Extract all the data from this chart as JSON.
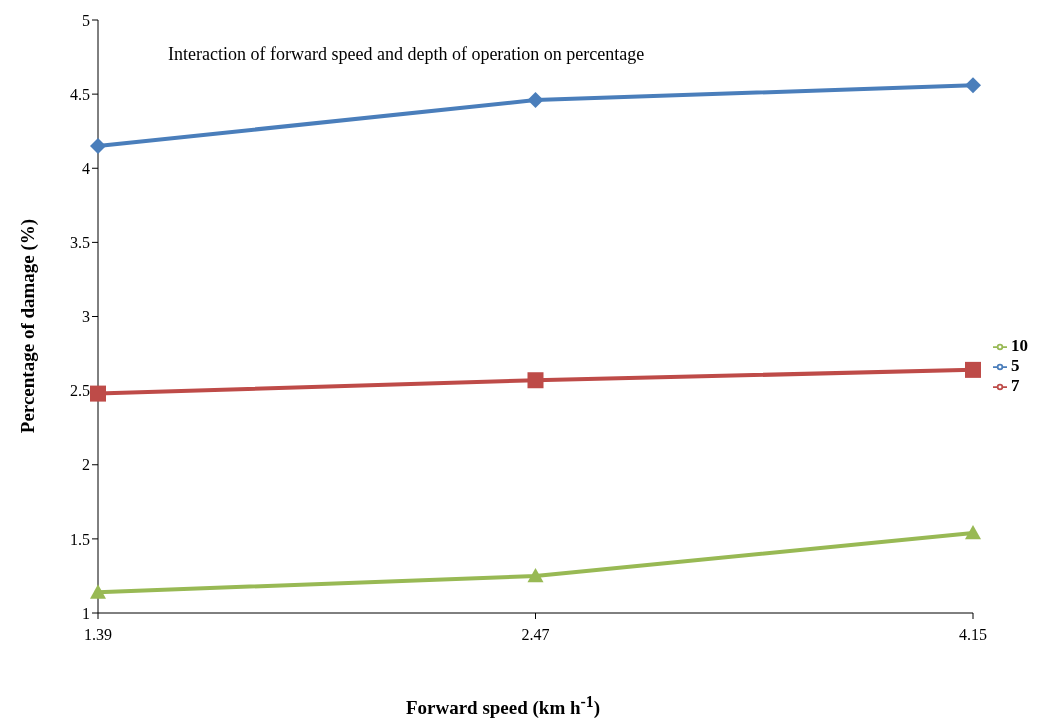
{
  "chart_data": {
    "type": "line",
    "title": "Interaction of forward speed and depth of operation on percentage",
    "xlabel": "Forward speed (km h$^{-1}$)",
    "ylabel": "Percentage of damage (%)",
    "categories": [
      "1.39",
      "2.47",
      "4.15"
    ],
    "series": [
      {
        "name": "5",
        "color": "#4a7ebb",
        "marker": "diamond",
        "values": [
          4.15,
          4.46,
          4.56
        ]
      },
      {
        "name": "7",
        "color": "#be4b48",
        "marker": "square",
        "values": [
          2.48,
          2.57,
          2.64
        ]
      },
      {
        "name": "10",
        "color": "#98b954",
        "marker": "triangle",
        "values": [
          1.14,
          1.25,
          1.54
        ]
      }
    ],
    "ylim": [
      1,
      5
    ],
    "yticks": [
      1,
      1.5,
      2,
      2.5,
      3,
      3.5,
      4,
      4.5,
      5
    ],
    "grid": false,
    "legend": "right"
  }
}
